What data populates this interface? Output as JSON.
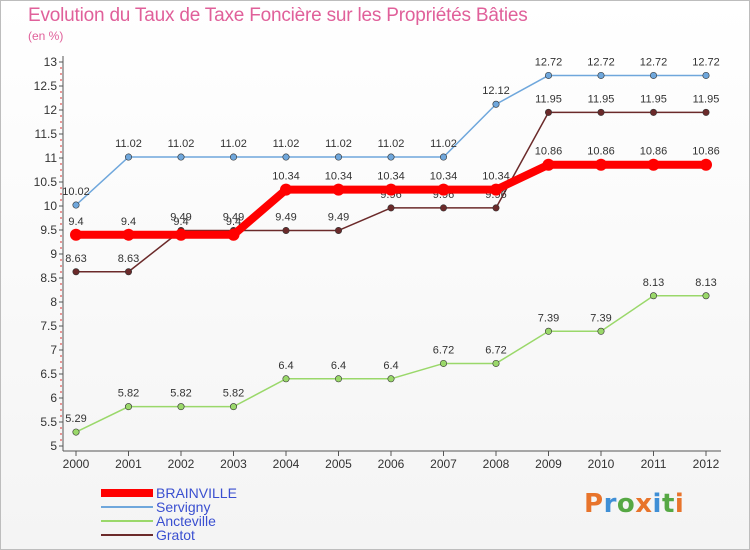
{
  "chart_data": {
    "type": "line",
    "title": "Evolution du Taux de Taxe Foncière sur les Propriétés Bâties",
    "unit_label": "(en %)",
    "xlabel": "",
    "ylabel": "",
    "categories": [
      "2000",
      "2001",
      "2002",
      "2003",
      "2004",
      "2005",
      "2006",
      "2007",
      "2008",
      "2009",
      "2010",
      "2011",
      "2012"
    ],
    "ylim": [
      5,
      13
    ],
    "yticks": [
      "5",
      "5.5",
      "6",
      "6.5",
      "7",
      "7.5",
      "8",
      "8.5",
      "9",
      "9.5",
      "10",
      "10.5",
      "11",
      "11.5",
      "12",
      "12.5",
      "13"
    ],
    "grid": false,
    "legend_position": "bottom-left",
    "series": [
      {
        "name": "Gratot",
        "color": "#6b2a2a",
        "values": [
          8.63,
          8.63,
          9.49,
          9.49,
          9.49,
          9.49,
          9.96,
          9.96,
          9.96,
          11.95,
          11.95,
          11.95,
          11.95
        ],
        "labels": [
          "8.63",
          "8.63",
          "9.49",
          "9.49",
          "9.49",
          "9.49",
          "9.96",
          "9.96",
          "9.96",
          "11.95",
          "11.95",
          "11.95",
          "11.95"
        ]
      },
      {
        "name": "Ancteville",
        "color": "#9ad86a",
        "values": [
          5.29,
          5.82,
          5.82,
          5.82,
          6.4,
          6.4,
          6.4,
          6.72,
          6.72,
          7.39,
          7.39,
          8.13,
          8.13
        ],
        "labels": [
          "5.29",
          "5.82",
          "5.82",
          "5.82",
          "6.4",
          "6.4",
          "6.4",
          "6.72",
          "6.72",
          "7.39",
          "7.39",
          "8.13",
          "8.13"
        ]
      },
      {
        "name": "Servigny",
        "color": "#6fa7dc",
        "values": [
          10.02,
          11.02,
          11.02,
          11.02,
          11.02,
          11.02,
          11.02,
          11.02,
          12.12,
          12.72,
          12.72,
          12.72,
          12.72
        ],
        "labels": [
          "10.02",
          "11.02",
          "11.02",
          "11.02",
          "11.02",
          "11.02",
          "11.02",
          "11.02",
          "12.12",
          "12.72",
          "12.72",
          "12.72",
          "12.72"
        ]
      },
      {
        "name": "BRAINVILLE",
        "color": "#ff0000",
        "values": [
          9.4,
          9.4,
          9.4,
          9.4,
          10.34,
          10.34,
          10.34,
          10.34,
          10.34,
          10.86,
          10.86,
          10.86,
          10.86
        ],
        "labels": [
          "9.4",
          "9.4",
          "9.4",
          "9.4",
          "10.34",
          "10.34",
          "10.34",
          "10.34",
          "10.34",
          "10.86",
          "10.86",
          "10.86",
          "10.86"
        ]
      }
    ]
  },
  "legend": {
    "items": [
      {
        "name": "BRAINVILLE",
        "color": "#ff0000"
      },
      {
        "name": "Servigny",
        "color": "#6fa7dc"
      },
      {
        "name": "Ancteville",
        "color": "#9ad86a"
      },
      {
        "name": "Gratot",
        "color": "#6b2a2a"
      }
    ]
  },
  "logo": {
    "text": "Proxiti",
    "colors": [
      "#e8742b",
      "#3f8fd6",
      "#56a844",
      "#e8742b",
      "#3f8fd6",
      "#56a844",
      "#e8742b"
    ]
  }
}
